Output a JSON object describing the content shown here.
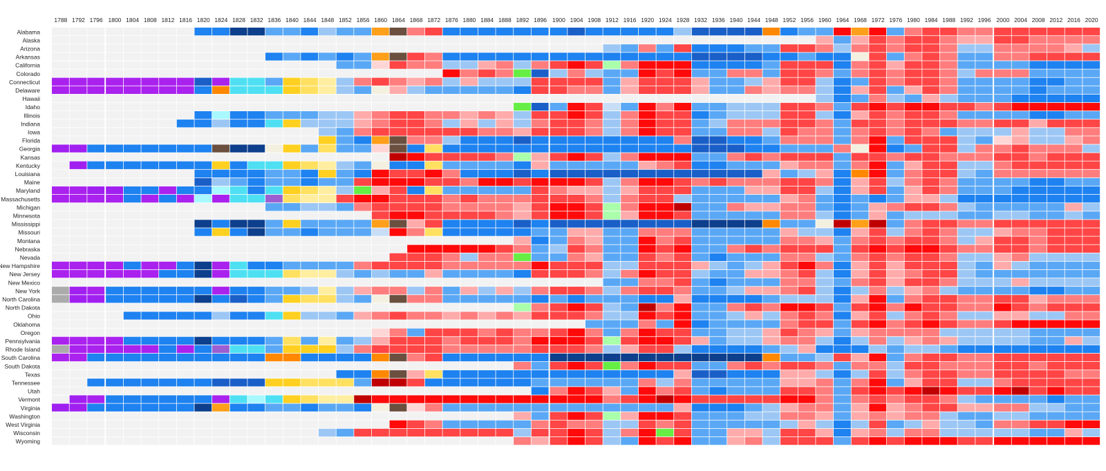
{
  "chart_data": {
    "type": "heatmap",
    "title": "",
    "xlabel": "",
    "ylabel": "",
    "grid": true,
    "legend": "none",
    "years": [
      1788,
      1792,
      1796,
      1800,
      1804,
      1808,
      1812,
      1816,
      1820,
      1824,
      1828,
      1832,
      1836,
      1840,
      1844,
      1848,
      1852,
      1856,
      1860,
      1864,
      1868,
      1872,
      1876,
      1880,
      1884,
      1888,
      1892,
      1896,
      1900,
      1904,
      1908,
      1912,
      1916,
      1920,
      1924,
      1928,
      1932,
      1936,
      1940,
      1944,
      1948,
      1952,
      1956,
      1960,
      1964,
      1968,
      1972,
      1976,
      1980,
      1984,
      1988,
      1992,
      1996,
      2000,
      2004,
      2008,
      2012,
      2016,
      2020
    ],
    "year_labels": [
      "1788",
      "1792",
      "1796",
      "1800",
      "1804",
      "1808",
      "1812",
      "1816",
      "1820",
      "1824",
      "1828",
      "1832",
      "1836",
      "1840",
      "1844",
      "1848",
      "1852",
      "1856",
      "1860",
      "1864",
      "1868",
      "1872",
      "1876",
      "1880",
      "1884",
      "1888",
      "1892",
      "1896",
      "1900",
      "1904",
      "1908",
      "1912",
      "1916",
      "1920",
      "1924",
      "1928",
      "1932",
      "1936",
      "1940",
      "1944",
      "1948",
      "1952",
      "1956",
      "1960",
      "1964",
      "1968",
      "1972",
      "1976",
      "1980",
      "1984",
      "1988",
      "1992",
      "1996",
      "2000",
      "2004",
      "2008",
      "2012",
      "2016",
      "2020"
    ],
    "color_key": {
      "n": "#f2f2f2",
      "P": "#a020f0",
      "F": "#aa22ee",
      "W": "#ababab",
      "D1": "#0d3f8c",
      "D2": "#1a5fc8",
      "D3": "#1e82f0",
      "D4": "#5aa8f5",
      "D5": "#9cc7f5",
      "D6": "#c8ddf6",
      "R1": "#c00000",
      "R2": "#ff0a0a",
      "R3": "#ff4545",
      "R4": "#ff7d7d",
      "R5": "#ffabab",
      "R6": "#ffd6d6",
      "WH1": "#ffd020",
      "WH2": "#ffe060",
      "WH3": "#ffeea0",
      "NR": "#4ee0f2",
      "AM": "#a8f8ff",
      "JA": "#1a5fc8",
      "ZZ": "#9b5fd1",
      "SD": "#ff8800",
      "CS": "#6b4f3f",
      "LB": "#ff9f1a",
      "PO": "#66ee44",
      "BM": "#aaffaa",
      "GN": "#f4f0e0"
    },
    "states": [
      {
        "name": "Alabama",
        "cells": "n n n n n n n n D3 D3 D1 D1 D4 D4 D3 D5 D4 D4 LB CS R4 R3 D3 D3 D3 D3 D3 D3 D3 D2 D3 D3 D3 D3 D3 D5 D2 D2 D2 D2 SD D3 D4 D4 R2 LB R2 D4 R4 R3 R3 R4 R4 R3 R3 R3 R3 R3 R3"
      },
      {
        "name": "Alaska",
        "cells": "n n n n n n n n n n n n n n n n n n n n n n n n n n n n n n n n n n n n n n n n n n n R5 D4 R5 R3 R4 R3 R3 R4 R5 R5 R3 R3 R4 R4 R4 R4"
      },
      {
        "name": "Arizona",
        "cells": "n n n n n n n n n n n n n n n n n n n n n n n n n n n n n n n D5 D4 R4 D4 R3 D3 D3 D3 D4 D4 R3 R3 R4 D5 R4 R3 R4 R3 R3 R4 D5 D5 R4 R4 R4 R4 R5 D5"
      },
      {
        "name": "Arkansas",
        "cells": "n n n n n n n n n n n n D3 D4 D3 D4 D3 D4 LB CS R3 R4 D3 D3 D3 D3 D3 D3 D3 D3 D3 D3 D3 D3 D3 D3 D2 D2 D2 D2 D3 D3 D4 D3 D3 GN R3 D4 R4 R3 R4 D4 D4 R4 R4 R3 R3 R3 R3"
      },
      {
        "name": "California",
        "cells": "n n n n n n n n n n n n n n n n D4 D4 R6 R3 R4 R4 D5 D5 R5 R4 D5 R4 R3 R2 R3 BM R4 R2 R2 R2 D3 D3 D3 D3 D4 R3 R3 R3 D3 R4 R3 R5 R3 R3 R4 D4 D4 D4 D4 D3 D3 D3 D3"
      },
      {
        "name": "Colorado",
        "cells": "n n n n n n n n n n n n n n n n n n n n n n R2 R4 R3 R4 PO D2 D5 R4 D5 D4 D4 R2 R3 R2 D4 D4 R4 R4 D4 R3 R3 R4 D4 R4 R3 R4 R3 R3 R4 D5 R4 R4 R4 D4 D4 D4 D4"
      },
      {
        "name": "Connecticut",
        "cells": "F F F F F F F F D2 F NR NR D4 WH1 WH2 WH3 D5 R4 R3 R4 R5 R4 D5 R5 D5 D5 D5 R3 R3 R3 R3 D4 R5 R3 R3 R3 R5 D4 D4 D5 R5 R3 R3 D5 D3 D4 R3 R4 R3 R3 R4 D4 D4 D4 D4 D3 D3 D4 D4"
      },
      {
        "name": "Delaware",
        "cells": "F F F F F F F F D3 SD NR NR NR WH1 WH2 WH3 D5 D4 GN R5 D5 D4 D4 D4 D4 D4 D3 R3 R3 R4 R4 D4 R5 R3 R3 R3 R5 D4 D4 R4 R5 R4 R4 D5 D3 R5 R3 D4 R5 R3 R4 D4 D4 D4 D4 D3 D4 D4 D4"
      },
      {
        "name": "Hawaii",
        "cells": "n n n n n n n n n n n n n n n n n n n n n n n n n n n n n n n n n n n n n n n n n n n D5 D3 D4 R4 D5 D4 R5 D5 D4 D4 D4 D3 D3 D3 D3 D3"
      },
      {
        "name": "Idaho",
        "cells": "n n n n n n n n n n n n n n n n n n n n n n n n n n PO D2 D4 R2 R3 D6 D4 R2 R4 R2 D4 D4 D5 D5 D5 R3 R3 R4 D4 R3 R2 R3 R2 R2 R3 R3 R4 R3 R2 R2 R2 R2 R2"
      },
      {
        "name": "Illinois",
        "cells": "n n n n n n n n D3 AM D3 D3 D4 D4 D4 D5 D5 R5 R4 R3 R3 R4 R4 R5 R4 R5 D5 R3 R3 R2 R3 D5 R4 R2 R3 R3 D3 D4 D5 D5 D5 R3 R3 D5 D3 R5 R3 R4 R3 R3 R4 D4 D4 D4 D4 D3 D3 D4 D4"
      },
      {
        "name": "Indiana",
        "cells": "n n n n n n n D3 D3 D5 D3 D3 NR WH1 D5 D5 D5 R5 R4 R3 R3 R4 D5 R5 D5 R5 D5 R4 R3 R3 R4 D5 R4 R2 R3 R3 D4 D5 R4 R4 R4 R3 R3 R4 D4 R3 R3 R4 R3 R3 R3 R4 R4 R3 R3 R5 R3 R3 R3"
      },
      {
        "name": "Iowa",
        "cells": "n n n n n n n n n n n n n n n D5 D4 R4 R3 R3 R3 R3 R3 R3 R4 R4 R5 R3 R3 R3 R4 D5 R4 R2 R3 R3 D4 D4 R4 R4 D5 R3 R4 R4 D4 R4 R3 R4 R3 R4 D4 D5 D5 D5 R5 D5 D5 R4 R4"
      },
      {
        "name": "Florida",
        "cells": "n n n n n n n n n n n n n n n WH1 D4 D3 LB CS R4 R4 D5 D3 D3 D3 D2 D3 D3 D3 D3 D3 D3 D3 D3 R4 D2 D2 D3 D3 D4 R4 R4 R4 D4 R4 R2 D4 R3 R3 R3 D5 D4 R6 R5 D5 D5 R5 R4"
      },
      {
        "name": "Georgia",
        "cells": "P P D3 D3 D3 D3 D3 D3 D3 CS D1 D1 GN WH1 D4 WH2 D4 D4 R6 CS D3 WH2 D3 D3 D3 D3 D3 D3 D3 D3 D3 D3 D3 D3 D3 D3 D2 D2 D2 D3 D3 D4 D4 D4 R4 GN R2 D3 D4 R3 R3 D5 R4 R4 R3 R4 R4 R4 D5"
      },
      {
        "name": "Kansas",
        "cells": "n n n n n n n n n n n n n n n n n n n R1 R2 R3 R3 R3 R3 R4 BM R5 R3 R2 R3 D5 R4 R2 R2 R2 D4 D4 R4 R3 R4 R3 R3 R3 D4 R3 R3 R4 R3 R3 R4 R4 R4 R3 R3 R4 R3 R3 R3"
      },
      {
        "name": "Kentucky",
        "cells": "n P D3 D3 D3 D3 D3 D3 D3 WH1 D3 NR NR WH1 WH2 WH3 D5 D4 GN D3 D3 WH2 D4 D4 D4 D4 D3 R5 D4 D4 D4 D4 D4 R5 R4 R3 D3 D3 D4 D4 D4 R5 R4 R4 D4 R4 R2 D4 R5 R3 R3 D5 D5 R4 R3 R3 R3 R3 R3"
      },
      {
        "name": "Louisiana",
        "cells": "n n n n n n n n D3 D3 D3 D3 D4 D4 D3 WH1 D4 D3 R2 R3 R3 R2 R4 D3 D3 D3 D2 D3 D2 D2 D2 D2 D2 D2 D2 D2 D2 D2 D2 D2 R5 D4 D5 R5 D3 SD R2 D4 R4 R3 R3 D5 D4 R4 R4 R4 R4 R4 R4"
      },
      {
        "name": "Maine",
        "cells": "n n n n n n n n D2 D5 D4 D3 D4 D4 D3 D4 D4 R3 R2 R2 R2 R3 R3 R4 R2 R2 R3 R2 R2 R2 R3 D5 R4 R2 R2 R3 R4 R3 R4 R4 R4 R3 R3 R4 D3 R5 R3 D5 R4 R3 R4 D4 D4 D4 D4 D3 D3 D4 D4"
      },
      {
        "name": "Maryland",
        "cells": "F F P P D3 D3 F D3 D3 AM NR D3 NR WH1 WH2 WH3 D5 PO R5 R3 D3 WH2 D4 D4 D4 D4 D4 R3 R4 R5 R5 D5 R5 R3 R3 R3 D4 D4 D4 R5 R5 R3 R3 D5 D3 R5 R3 D4 R5 R3 R4 D4 D4 D4 D3 D3 D3 D3 D3"
      },
      {
        "name": "Massachusetts",
        "cells": "F F F F D3 F D3 F AM F NR NR ZZ WH2 WH3 WH3 R3 R2 R2 R3 R3 R3 R4 R3 R4 R4 R4 R3 R3 R3 R4 D5 R4 R3 R3 D5 D4 D4 D4 D4 D4 R5 R4 D4 D3 D4 D3 D4 R5 R5 D5 D3 D3 D3 D3 D3 D3 D3 D3"
      },
      {
        "name": "Michigan",
        "cells": "n n n n n n n n n n n n D4 D4 D5 D5 D4 R4 R3 R3 R3 R3 R4 R4 R4 R4 R5 R3 R2 R2 R3 BM R4 R2 R2 R1 D4 D4 R4 R5 R5 R4 R4 D4 D3 D4 R5 R4 R3 R3 R4 D5 D4 D4 D4 D4 D4 R5 D5"
      },
      {
        "name": "Minnesota",
        "cells": "n n n n n n n n n n n n n n n n n n R3 R2 R2 R3 R3 R3 R3 R4 R5 R3 R2 R2 R3 BM R5 R2 R2 R3 D4 D4 D4 D4 D4 R4 R4 D5 D3 D4 R5 D4 D5 D5 D5 D4 D4 D5 D5 D4 D4 D5 D4"
      },
      {
        "name": "Mississippi",
        "cells": "n n n n n n n n D1 D3 D1 D1 D4 WH1 D4 D4 D4 D4 LB CS R5 R3 D3 D3 D3 D3 D2 D3 D2 D2 D2 D2 D2 D2 D2 D2 D1 D1 D1 D1 SD D4 D4 GN R1 LB R1 D4 R4 R3 R3 R4 R4 R3 R3 R3 R3 R3 R3"
      },
      {
        "name": "Missouri",
        "cells": "n n n n n n n n D3 WH1 D3 D1 D4 D4 D3 D4 D4 D4 D6 R2 R4 WH2 D3 D3 D3 D3 D3 D4 D4 R5 R5 D4 D4 R4 R4 R4 D4 D4 D4 D4 D4 R5 D5 D5 D3 R5 R3 D5 R4 R3 R4 D5 D5 R5 R4 R4 R3 R3 R3"
      },
      {
        "name": "Montana",
        "cells": "n n n n n n n n n n n n n n n n n n n n n n n n n n R5 D3 D4 R4 R5 D4 D4 R2 R4 R3 D4 D4 D4 D4 D4 R4 R4 R5 D4 R4 R3 R4 R3 R3 R4 D5 R5 R3 R3 R4 R3 R3 R3"
      },
      {
        "name": "Nebraska",
        "cells": "n n n n n n n n n n n n n n n n n n n n R2 R2 R2 R2 R2 R3 R4 D4 D5 R3 R4 D4 D4 R2 R3 R2 D4 D4 R4 R3 R4 R3 R3 R3 D4 R3 R2 R3 R2 R2 R3 R4 R4 R3 R3 R4 R3 R3 R3"
      },
      {
        "name": "Nevada",
        "cells": "n n n n n n n n n n n n n n n n n n n R3 R3 R3 R4 D5 R4 R4 PO D4 D4 R4 R5 D4 D4 R3 R4 R3 D4 D3 D4 D4 D4 R4 R4 D5 D4 R4 R3 R4 R3 R3 R4 D5 D5 R5 R4 D5 D5 D5 D5"
      },
      {
        "name": "New Hampshire",
        "cells": "F F F F D3 F F D3 D1 F NR D3 D3 D4 D4 D4 D4 R4 R3 R3 R3 R3 R4 R4 R4 R4 R4 R2 R3 R3 R3 D5 D5 R3 R3 R3 R5 D5 D4 D5 R5 R3 R2 R4 D3 R5 R3 R5 R3 R3 R3 D5 D4 R5 D5 D4 D4 D4 D4"
      },
      {
        "name": "New Jersey",
        "cells": "F F F F F F D3 D3 D1 F NR NR NR WH2 WH3 WH3 D5 D4 D5 D4 D4 R5 D4 D4 D4 D4 D3 R3 R3 R3 R4 D5 R4 R2 R3 R3 D5 D4 D4 R5 R5 R4 R3 D5 D3 R5 R3 R5 R4 R3 R3 D5 D4 D4 D4 D4 D4 D4 D4"
      },
      {
        "name": "New Mexico",
        "cells": "n n n n n n n n n n n n n n n n n n n n n n n n n n n n n n n D4 D4 R4 R4 R3 D4 D3 D4 D4 D4 R4 R4 D5 D4 R4 R3 R5 R3 R3 R4 D5 D5 D5 R5 D5 D5 D5 D5"
      },
      {
        "name": "New York",
        "cells": "W P F D3 D3 D3 D3 D3 D3 F D3 D3 D4 D4 D5 WH3 D5 R5 R4 R4 D5 R4 D4 R5 D5 R5 D5 R4 R3 R3 R4 D5 R4 R3 R3 R4 D4 D4 D5 R5 R5 R4 R3 D5 D3 D5 R4 D5 R5 R4 D5 D4 D4 D4 D4 D3 D3 D4 D4"
      },
      {
        "name": "North Carolina",
        "cells": "W P P D3 D3 D3 D3 D3 D1 D3 D2 D3 D4 WH1 WH2 WH2 D5 D4 GN CS R4 R4 D4 D4 D4 D4 D4 D3 D4 D3 D4 D4 D4 D3 D3 R5 D3 D3 D3 D3 D4 D5 D5 D5 D3 R5 R2 D4 R4 R3 R3 R4 R4 R3 R3 R5 R4 R4 R4"
      },
      {
        "name": "North Dakota",
        "cells": "n n n n n n n n n n n n n n n n n n n n n n n n n n BM R4 R3 R2 R3 D5 D4 R1 R4 R2 D4 D4 R4 R3 R4 R2 R2 R3 D4 R3 R2 R4 R2 R3 R3 R4 R4 R2 R3 R4 R3 R3 R3"
      },
      {
        "name": "Ohio",
        "cells": "n n n n D3 D3 D3 D3 D3 D5 D3 D3 NR WH1 D5 D5 D4 R5 R4 R3 R4 R4 R5 R4 R5 R4 R5 R3 R3 R3 R4 D5 D5 R2 R3 R2 D4 D4 D5 R5 D5 R4 R3 R4 D3 R5 R3 D5 R4 R3 R4 D5 D5 R5 R5 D5 D5 R4 R4"
      },
      {
        "name": "Oklahoma",
        "cells": "n n n n n n n n n n n n n n n n n n n n n n n n n n n n n n D4 D4 D4 R4 D4 R2 D3 D4 D4 D4 D4 R4 R3 R3 D4 R3 R2 R4 R3 R2 R3 R4 R4 R3 R2 R2 R2 R2 R2"
      },
      {
        "name": "Oregon",
        "cells": "n n n n n n n n n n n n n n n n n n R6 R4 D4 R3 R3 R3 R4 R3 R4 R4 R3 R2 R4 D4 R4 R2 R3 R3 D4 D4 D5 D5 R5 R3 R4 R5 D4 R5 R4 R4 R4 R4 D5 D5 D5 D5 D5 D4 D4 D4 D4"
      },
      {
        "name": "Pennsylvania",
        "cells": "F F F F D3 D3 D3 D3 D1 D3 D3 D3 D4 WH2 D4 WH3 D4 D5 R5 R3 R3 R3 R4 R3 R3 R3 R4 R2 R2 R2 R3 BM R3 R2 R2 R3 R5 D4 D5 D5 R5 R4 R4 D5 D3 D5 R4 D5 R5 R4 R5 D5 D5 D5 D5 D4 D4 R5 D5"
      },
      {
        "name": "Rhode Island",
        "cells": "W F F F F F D3 F D3 ZZ NR NR D4 WH1 WH1 WH1 D5 R4 R3 R3 R3 R3 R4 R4 R4 R4 R4 R3 R3 R3 R4 D5 R5 R3 R3 D5 D3 D3 D3 D3 D4 D5 R5 D3 D3 D3 D5 D4 D5 D5 D4 D3 D3 D3 D3 D3 D3 D3 D3"
      },
      {
        "name": "South Carolina",
        "cells": "F F D3 D3 D3 D3 D3 D3 D3 D3 D3 D3 SD SD D3 D3 D3 D3 SD CS R4 R3 D3 D3 D3 D3 D3 D3 D1 D1 D1 D1 D1 D1 D1 D1 D1 D1 D1 D1 SD D4 D4 D5 R3 R5 R2 D4 R4 R3 R3 R4 R4 R3 R3 R3 R3 R3 R3"
      },
      {
        "name": "South Dakota",
        "cells": "n n n n n n n n n n n n n n n n n n n n n n n n n n R4 D4 R3 R2 R3 PO R4 R2 R3 R3 D4 D4 R4 R3 R4 R3 R3 R4 D4 R4 R4 D5 R3 R3 R4 R4 R4 R3 R3 R4 R3 R3 R3"
      },
      {
        "name": "Texas",
        "cells": "n n n n n n n n n n n n n n n n D3 D3 SD CS R5 WH2 D3 D3 D3 D3 D3 D3 D3 D3 D3 D3 D3 D3 D3 R5 D2 D2 D3 D3 D3 R5 R5 D5 D3 D5 R3 D5 R4 R3 R3 R4 R4 R3 R3 R3 R3 R4 R4"
      },
      {
        "name": "Tennessee",
        "cells": "n n D3 D3 D3 D3 D3 D3 D3 D2 D2 D2 WH1 WH1 WH2 WH2 WH2 D4 R1 R1 R3 D3 D3 D3 D3 D3 D3 D4 D4 D4 D4 D4 D4 R4 D5 R4 D4 D4 D4 D4 D4 R5 R5 R4 D4 R4 R2 D4 R5 R3 R3 D5 D5 R4 R3 R3 R3 R3 R3"
      },
      {
        "name": "Utah",
        "cells": "n n n n n n n n n n n n n n n n n n n n n n n n n n n D3 R4 R2 R3 R5 D4 R2 R4 R3 D4 D3 D4 D4 D4 R3 R3 R4 D4 R3 R2 R3 R2 R1 R2 R3 R3 R2 R1 R3 R2 R3 R3"
      },
      {
        "name": "Vermont",
        "cells": "n P F D3 D3 D3 D3 D3 D3 F NR AM NR WH1 WH2 WH3 WH3 R1 R2 R2 R2 R2 R2 R2 R2 R2 R2 R2 R2 R2 R2 R4 R3 R2 R1 R2 R3 R3 R3 R3 R3 R2 R2 R4 D4 R4 R3 R4 R3 R3 R4 D5 D4 D4 D4 D4 D3 D4 D4"
      },
      {
        "name": "Virginia",
        "cells": "P P D3 D3 D3 D3 D3 D3 D1 LB D3 D3 D4 D4 D3 D4 D4 D3 GN CS R6 R4 D4 D4 D4 D4 D4 D4 D4 D4 D4 D4 D4 D4 D4 R5 D3 D3 D3 D4 D5 R5 R4 R4 D4 R5 R2 R5 R4 R3 R3 R5 R5 R4 R4 D5 D5 D4 D4"
      },
      {
        "name": "Washington",
        "cells": "n n n n n n n n n n n n n n n n n n n n n n n n n n R5 D4 R3 R2 R3 BM R5 R2 R2 R3 D4 D4 D4 D5 D5 R4 R4 R5 D4 R5 R4 R5 R4 R4 D5 D4 D4 D5 D5 D4 D4 D4 D4"
      },
      {
        "name": "West Virginia",
        "cells": "n n n n n n n n n n n n n n n n n n n R2 R3 R4 D4 D4 D4 D4 D4 R4 R3 R4 R4 D5 D5 R3 R4 R3 D4 D4 D4 D4 D4 D5 R5 D5 D3 D5 R3 D4 D5 R5 D5 D5 D4 R4 R4 R3 R3 R2 R2"
      },
      {
        "name": "Wisconsin",
        "cells": "n n n n n n n n n n n n n n n D5 D4 R3 R3 R3 R3 R3 R3 R3 R3 R3 D5 R3 R3 R2 R3 D5 R4 R2 PO R3 D4 D4 R5 R5 D5 R3 R3 R5 D3 R5 R4 D5 R4 R4 D5 D5 D5 D5 D5 D4 D4 R5 D5"
      },
      {
        "name": "Wyoming",
        "cells": "n n n n n n n n n n n n n n n n n n n n n n n n n n R4 R5 R3 R2 R3 D5 D4 R2 R3 R2 D4 D4 R5 R4 D5 R3 R3 R3 D4 R3 R2 R3 R2 R2 R2 R3 R3 R2 R2 R2 R2 R2 R2"
      }
    ]
  }
}
